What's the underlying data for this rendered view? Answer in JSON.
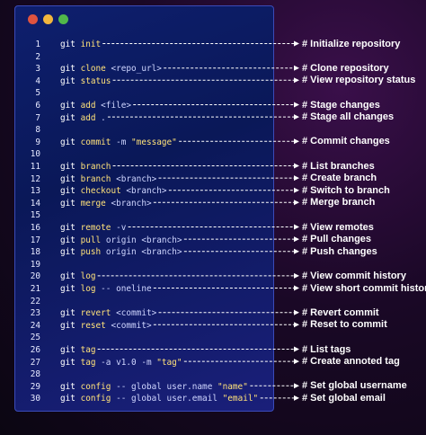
{
  "window": {
    "dots": [
      {
        "name": "close-dot",
        "color": "#e0533f"
      },
      {
        "name": "minimize-dot",
        "color": "#f2b63d"
      },
      {
        "name": "maximize-dot",
        "color": "#51b84a"
      }
    ]
  },
  "lines": [
    {
      "n": "1",
      "git": "git",
      "cmd": "init",
      "rest": "",
      "str": "",
      "note": "# Initialize repository"
    },
    {
      "n": "2",
      "git": "",
      "cmd": "",
      "rest": "",
      "str": "",
      "note": ""
    },
    {
      "n": "3",
      "git": "git",
      "cmd": "clone",
      "rest": " <repo_url>",
      "str": "",
      "note": "# Clone repository"
    },
    {
      "n": "4",
      "git": "git",
      "cmd": "status",
      "rest": "",
      "str": "",
      "note": "# View repository status"
    },
    {
      "n": "5",
      "git": "",
      "cmd": "",
      "rest": "",
      "str": "",
      "note": ""
    },
    {
      "n": "6",
      "git": "git",
      "cmd": "add",
      "rest": " <file>",
      "str": "",
      "note": "# Stage changes"
    },
    {
      "n": "7",
      "git": "git",
      "cmd": "add",
      "rest": " .",
      "str": "",
      "note": "# Stage all changes"
    },
    {
      "n": "8",
      "git": "",
      "cmd": "",
      "rest": "",
      "str": "",
      "note": ""
    },
    {
      "n": "9",
      "git": "git",
      "cmd": "commit",
      "rest": " -m ",
      "str": "\"message\"",
      "note": "# Commit changes"
    },
    {
      "n": "10",
      "git": "",
      "cmd": "",
      "rest": "",
      "str": "",
      "note": ""
    },
    {
      "n": "11",
      "git": "git",
      "cmd": "branch",
      "rest": "",
      "str": "",
      "note": "# List branches"
    },
    {
      "n": "12",
      "git": "git",
      "cmd": "branch",
      "rest": " <branch>",
      "str": "",
      "note": "# Create branch"
    },
    {
      "n": "13",
      "git": "git",
      "cmd": "checkout",
      "rest": " <branch>",
      "str": "",
      "note": "# Switch to branch"
    },
    {
      "n": "14",
      "git": "git",
      "cmd": "merge",
      "rest": " <branch>",
      "str": "",
      "note": "# Merge branch"
    },
    {
      "n": "15",
      "git": "",
      "cmd": "",
      "rest": "",
      "str": "",
      "note": ""
    },
    {
      "n": "16",
      "git": "git",
      "cmd": "remote",
      "rest": " -v",
      "str": "",
      "note": "# View remotes"
    },
    {
      "n": "17",
      "git": "git",
      "cmd": "pull",
      "rest": " origin <branch>",
      "str": "",
      "note": "# Pull changes"
    },
    {
      "n": "18",
      "git": "git",
      "cmd": "push",
      "rest": " origin <branch>",
      "str": "",
      "note": "# Push changes"
    },
    {
      "n": "19",
      "git": "",
      "cmd": "",
      "rest": "",
      "str": "",
      "note": ""
    },
    {
      "n": "20",
      "git": "git",
      "cmd": "log",
      "rest": "",
      "str": "",
      "note": "# View commit history"
    },
    {
      "n": "21",
      "git": "git",
      "cmd": "log",
      "rest": " -- oneline",
      "str": "",
      "note": "# View short commit history"
    },
    {
      "n": "22",
      "git": "",
      "cmd": "",
      "rest": "",
      "str": "",
      "note": ""
    },
    {
      "n": "23",
      "git": "git",
      "cmd": "revert",
      "rest": " <commit>",
      "str": "",
      "note": "# Revert commit"
    },
    {
      "n": "24",
      "git": "git",
      "cmd": "reset",
      "rest": " <commit>",
      "str": "",
      "note": "# Reset to commit"
    },
    {
      "n": "25",
      "git": "",
      "cmd": "",
      "rest": "",
      "str": "",
      "note": ""
    },
    {
      "n": "26",
      "git": "git",
      "cmd": "tag",
      "rest": "",
      "str": "",
      "note": "# List tags"
    },
    {
      "n": "27",
      "git": "git",
      "cmd": "tag",
      "rest": " -a v1.0 -m ",
      "str": "\"tag\"",
      "note": "# Create annoted tag"
    },
    {
      "n": "28",
      "git": "",
      "cmd": "",
      "rest": "",
      "str": "",
      "note": ""
    },
    {
      "n": "29",
      "git": "git",
      "cmd": "config",
      "rest": " -- global user.name ",
      "str": "\"name\"",
      "note": "# Set global username"
    },
    {
      "n": "30",
      "git": "git",
      "cmd": "config",
      "rest": " -- global user.email ",
      "str": "\"email\"",
      "note": "# Set global email"
    }
  ]
}
